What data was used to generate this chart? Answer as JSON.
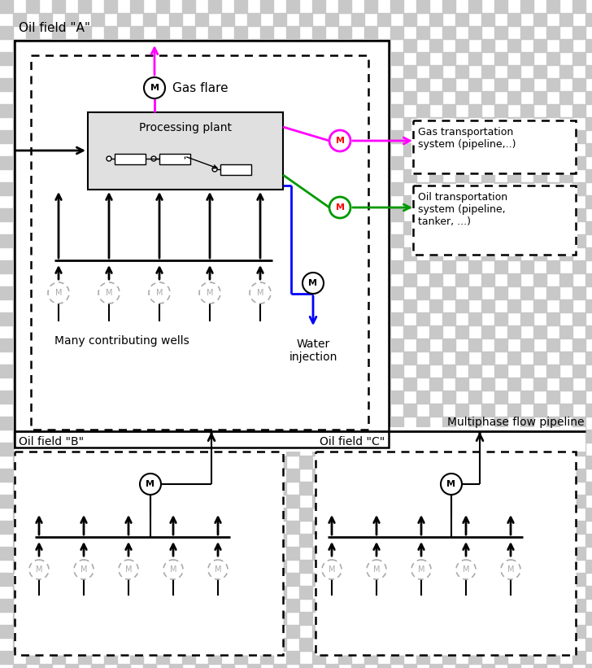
{
  "magenta": "#ff00ff",
  "green": "#009900",
  "blue": "#0000ff",
  "black": "#000000",
  "red": "#ff0000",
  "checker_color": "#c8c8c8",
  "checker_size": 16,
  "processing_plant_label": "Processing plant",
  "gas_flare_label": "Gas flare",
  "water_injection_label": "Water\ninjection",
  "many_wells_label": "Many contributing wells",
  "multiphase_label": "Multiphase flow pipeline",
  "gas_transport_label": "Gas transportation\nsystem (pipeline,..)",
  "oil_transport_label": "Oil transportation\nsystem (pipeline,\ntanker, ...)",
  "oil_field_A_label": "Oil field \"A\"",
  "oil_field_B_label": "Oil field \"B\"",
  "oil_field_C_label": "Oil field \"C\""
}
